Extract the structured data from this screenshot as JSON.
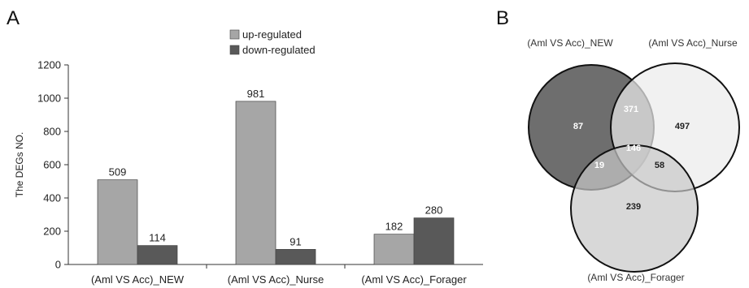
{
  "panels": {
    "a_label": "A",
    "b_label": "B"
  },
  "colors": {
    "up": "#a6a6a6",
    "down": "#595959",
    "venn_new": "#6e6e6e",
    "venn_nurse": "#ececec",
    "venn_forager": "#c8c8c8"
  },
  "chart_data": [
    {
      "type": "bar",
      "categories": [
        "(Aml VS Acc)_NEW",
        "(Aml VS Acc)_Nurse",
        "(Aml VS Acc)_Forager"
      ],
      "series": [
        {
          "name": "up-regulated",
          "values": [
            509,
            981,
            182
          ]
        },
        {
          "name": "down-regulated",
          "values": [
            114,
            91,
            280
          ]
        }
      ],
      "ylabel": "The DEGs NO.",
      "xlabel": "",
      "ylim": [
        0,
        1200
      ],
      "yticks": [
        0,
        200,
        400,
        600,
        800,
        1000,
        1200
      ],
      "legend": "top-center",
      "grid": false
    },
    {
      "type": "venn",
      "sets": [
        "(Aml VS Acc)_NEW",
        "(Aml VS Acc)_Nurse",
        "(Aml VS Acc)_Forager"
      ],
      "regions": {
        "new_only": 87,
        "nurse_only": 497,
        "forager_only": 239,
        "new_nurse": 371,
        "new_forager": 19,
        "nurse_forager": 58,
        "all_three": 146
      }
    }
  ]
}
